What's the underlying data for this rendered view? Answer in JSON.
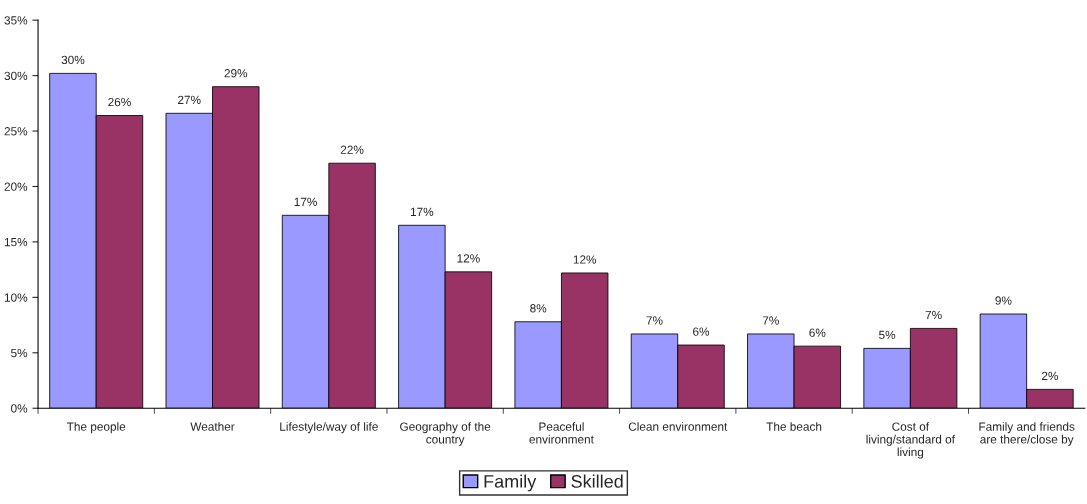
{
  "chart_data": {
    "type": "bar",
    "categories": [
      "The people",
      "Weather",
      "Lifestyle/way of life",
      "Geography of the\ncountry",
      "Peaceful\nenvironment",
      "Clean environment",
      "The beach",
      "Cost of\nliving/standard of\nliving",
      "Family and friends\nare there/close by"
    ],
    "series": [
      {
        "name": "Family",
        "color": "#9999ff",
        "values": [
          30.2,
          26.6,
          17.4,
          16.5,
          7.8,
          6.7,
          6.7,
          5.4,
          8.5
        ],
        "value_labels": [
          "30%",
          "27%",
          "17%",
          "17%",
          "8%",
          "7%",
          "7%",
          "5%",
          "9%"
        ]
      },
      {
        "name": "Skilled",
        "color": "#993366",
        "values": [
          26.4,
          29.0,
          22.1,
          12.3,
          12.2,
          5.7,
          5.6,
          7.2,
          1.7
        ],
        "value_labels": [
          "26%",
          "29%",
          "22%",
          "12%",
          "12%",
          "6%",
          "6%",
          "7%",
          "2%"
        ]
      }
    ],
    "ylim": [
      0,
      35
    ],
    "yticks": [
      {
        "value": 0,
        "label": "0%"
      },
      {
        "value": 5,
        "label": "5%"
      },
      {
        "value": 10,
        "label": "10%"
      },
      {
        "value": 15,
        "label": "15%"
      },
      {
        "value": 20,
        "label": "20%"
      },
      {
        "value": 25,
        "label": "25%"
      },
      {
        "value": 30,
        "label": "30%"
      },
      {
        "value": 35,
        "label": "35%"
      }
    ],
    "grid": false,
    "legend": "bottom"
  }
}
